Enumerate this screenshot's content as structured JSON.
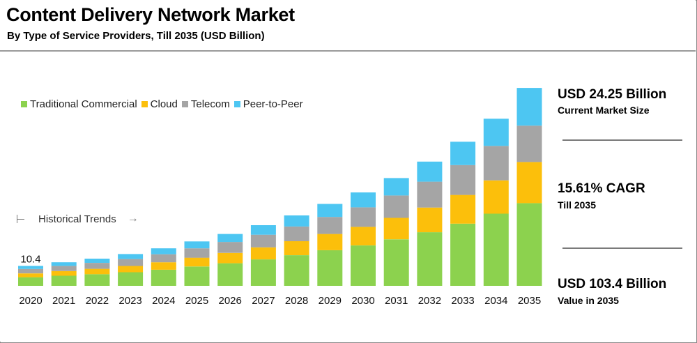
{
  "header": {
    "title": "Content Delivery Network Market",
    "subtitle": "By Type of Service Providers, Till 2035 (USD Billion)"
  },
  "legend": [
    {
      "name": "Traditional Commercial",
      "color": "#8cd24e"
    },
    {
      "name": "Cloud",
      "color": "#fcbf0b"
    },
    {
      "name": "Telecom",
      "color": "#a5a5a5"
    },
    {
      "name": "Peer-to-Peer",
      "color": "#4dc6f2"
    }
  ],
  "annotation": {
    "historical_trends": "Historical Trends",
    "first_value_label": "10.4"
  },
  "stats": [
    {
      "main": "USD 24.25 Billion",
      "sub": "Current Market Size"
    },
    {
      "main": "15.61% CAGR",
      "sub": "Till 2035"
    },
    {
      "main": "USD 103.4 Billion",
      "sub": "Value in 2035"
    }
  ],
  "chart_data": {
    "type": "bar",
    "stacked": true,
    "title": "Content Delivery Network Market",
    "subtitle": "By Type of Service Providers, Till 2035 (USD Billion)",
    "categories": [
      "2020",
      "2021",
      "2022",
      "2023",
      "2024",
      "2025",
      "2026",
      "2027",
      "2028",
      "2029",
      "2030",
      "2031",
      "2032",
      "2033",
      "2034",
      "2035"
    ],
    "series": [
      {
        "name": "Traditional Commercial",
        "color": "#8cd24e",
        "values": [
          4.5,
          5.3,
          6.1,
          7.1,
          8.4,
          10.1,
          11.8,
          13.8,
          16.0,
          18.6,
          21.1,
          24.3,
          28.0,
          32.5,
          37.7,
          43.2
        ]
      },
      {
        "name": "Cloud",
        "color": "#fcbf0b",
        "values": [
          2.0,
          2.4,
          2.8,
          3.3,
          3.9,
          4.6,
          5.4,
          6.3,
          7.3,
          8.5,
          9.7,
          11.2,
          12.9,
          15.0,
          17.4,
          21.5
        ]
      },
      {
        "name": "Telecom",
        "color": "#a5a5a5",
        "values": [
          2.3,
          2.7,
          3.1,
          3.6,
          4.2,
          4.9,
          5.7,
          6.6,
          7.7,
          8.9,
          10.2,
          11.7,
          13.5,
          15.6,
          18.0,
          19.0
        ]
      },
      {
        "name": "Peer-to-Peer",
        "color": "#4dc6f2",
        "values": [
          1.6,
          1.9,
          2.2,
          2.6,
          3.1,
          3.6,
          4.2,
          5.0,
          5.8,
          6.8,
          7.8,
          9.1,
          10.5,
          12.2,
          14.2,
          19.7
        ]
      }
    ],
    "ylim": [
      0,
      110
    ],
    "data_labels": [
      {
        "category": "2020",
        "text": "10.4"
      }
    ],
    "legend_position": "top-left",
    "grid": false
  }
}
